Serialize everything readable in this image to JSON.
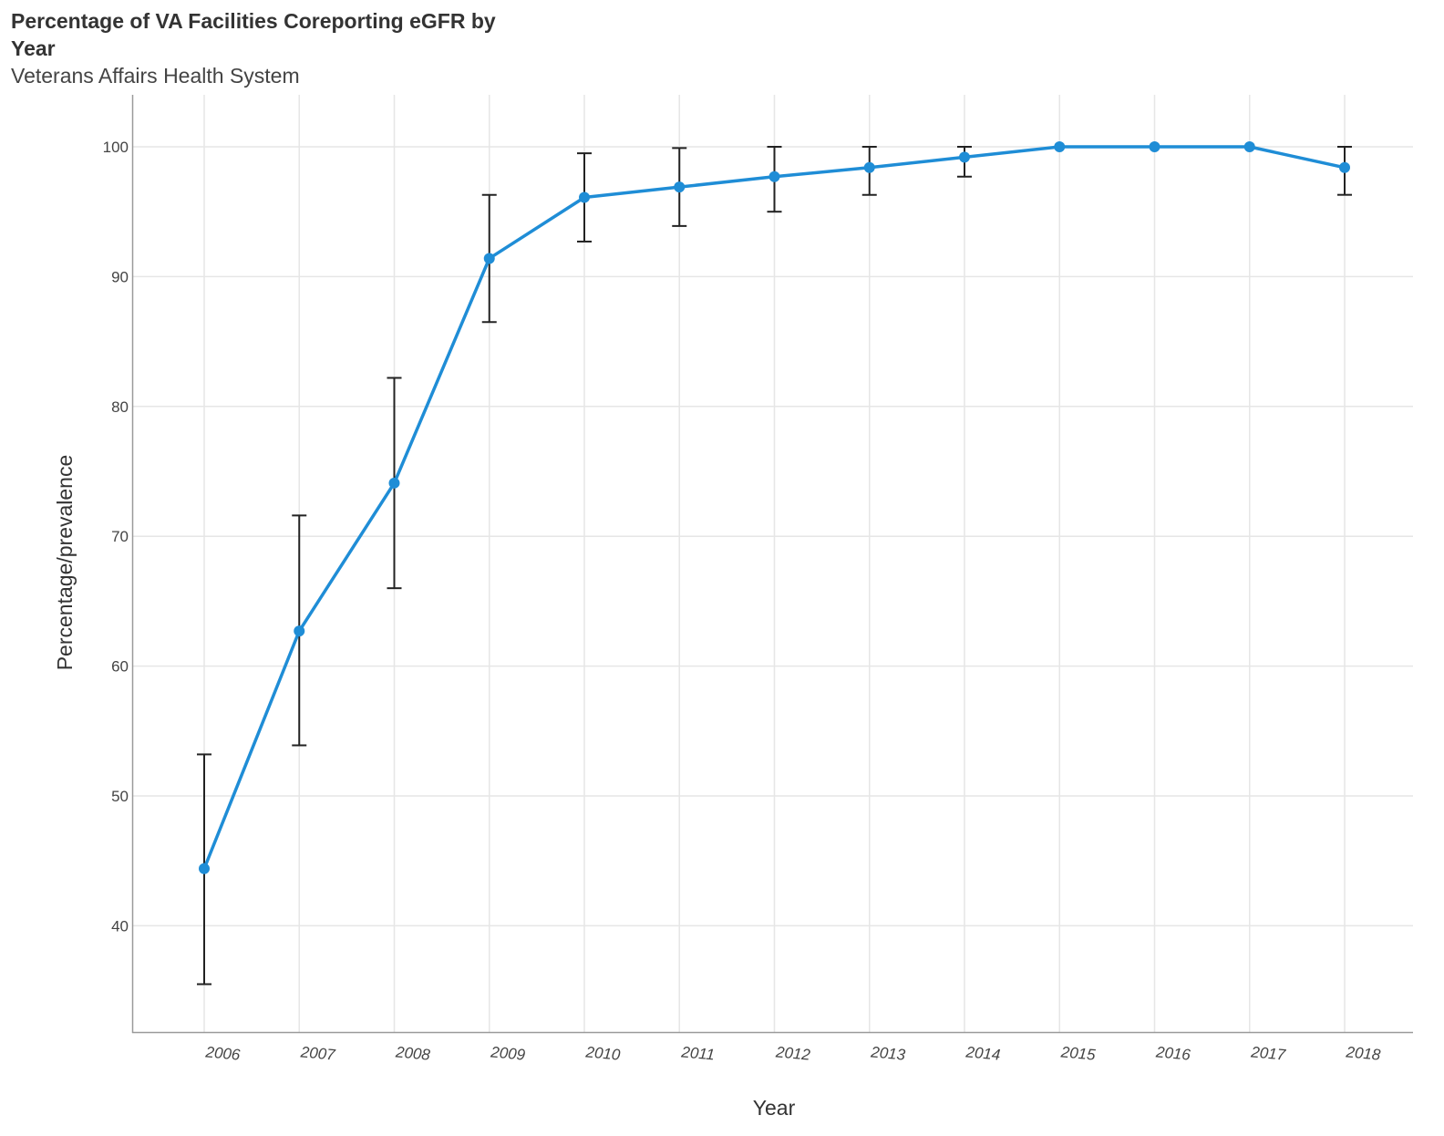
{
  "chart_data": {
    "type": "line",
    "title": "Percentage of VA Facilities Coreporting eGFR by Year",
    "subtitle": "Veterans Affairs Health System",
    "xlabel": "Year",
    "ylabel": "Percentage/prevalence",
    "ylim": [
      32,
      104
    ],
    "yticks": [
      40,
      50,
      60,
      70,
      80,
      90,
      100
    ],
    "grid": true,
    "line_color": "#1f8dd6",
    "errorbar_color": "#222222",
    "categories": [
      "2006",
      "2007",
      "2008",
      "2009",
      "2010",
      "2011",
      "2012",
      "2013",
      "2014",
      "2015",
      "2016",
      "2017",
      "2018"
    ],
    "series": [
      {
        "values": [
          44.4,
          62.7,
          74.1,
          91.4,
          96.1,
          96.9,
          97.7,
          98.4,
          99.2,
          100,
          100,
          100,
          98.4
        ],
        "error_low": [
          35.5,
          53.9,
          66.0,
          86.5,
          92.7,
          93.9,
          95.0,
          96.3,
          97.7,
          100,
          100,
          100,
          96.3
        ],
        "error_high": [
          53.2,
          71.6,
          82.2,
          96.3,
          99.5,
          99.9,
          100,
          100,
          100,
          100,
          100,
          100,
          100
        ]
      }
    ]
  }
}
